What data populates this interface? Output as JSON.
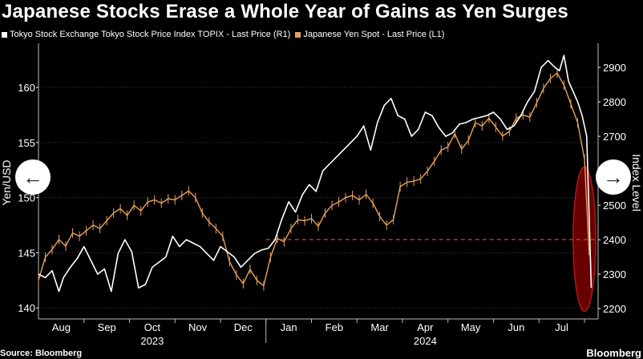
{
  "title": "Japanese Stocks Erase a Whole Year of Gains as Yen Surges",
  "source": "Source: Bloomberg",
  "brand": "Bloomberg",
  "icons": {
    "prev": "arrow-left-icon",
    "next": "arrow-right-icon"
  },
  "nav": {
    "prev_glyph": "←",
    "next_glyph": "→"
  },
  "colors": {
    "background": "#000000",
    "topix": "#ffffff",
    "yen": "#e8a15c",
    "highlight": "#8b0000",
    "reference": "#e03030",
    "grid": "#3a3a3a"
  },
  "chart_data": {
    "type": "line",
    "title": "Japanese Stocks Erase a Whole Year of Gains as Yen Surges",
    "legend": [
      "Tokyo Stock Exchange Tokyo Stock Price Index TOPIX - Last Price (R1)",
      "Japanese Yen Spot - Last Price (L1)"
    ],
    "legend_position": "top-left",
    "ylabel_left": "Yen/USD",
    "ylabel_right": "Index Level",
    "ylim_left": [
      139,
      164
    ],
    "ylim_right": [
      2170,
      2970
    ],
    "yticks_left": [
      140,
      145,
      150,
      155,
      160
    ],
    "yticks_right": [
      2200,
      2300,
      2400,
      2500,
      2600,
      2700,
      2800,
      2900
    ],
    "xlim": [
      0,
      12.3
    ],
    "months": [
      {
        "label": "Aug",
        "x": 0.5
      },
      {
        "label": "Sep",
        "x": 1.5
      },
      {
        "label": "Oct",
        "x": 2.5
      },
      {
        "label": "Nov",
        "x": 3.5
      },
      {
        "label": "Dec",
        "x": 4.5
      },
      {
        "label": "Jan",
        "x": 5.5
      },
      {
        "label": "Feb",
        "x": 6.5
      },
      {
        "label": "Mar",
        "x": 7.5
      },
      {
        "label": "Apr",
        "x": 8.5
      },
      {
        "label": "May",
        "x": 9.5
      },
      {
        "label": "Jun",
        "x": 10.5
      },
      {
        "label": "Jul",
        "x": 11.5
      }
    ],
    "month_boundaries": [
      1,
      2,
      3,
      4,
      5,
      6,
      7,
      8,
      9,
      10,
      11,
      12
    ],
    "years": [
      {
        "label": "2023",
        "x": 2.5
      },
      {
        "label": "2024",
        "x": 8.5
      }
    ],
    "reference_line": {
      "axis": "left",
      "value": 146.2,
      "x_start": 5.0,
      "x_end": 12.3
    },
    "highlight": {
      "x": 12.0,
      "y_left_range": [
        139.7,
        152.8
      ]
    },
    "series": [
      {
        "name": "Tokyo Stock Exchange Tokyo Stock Price Index TOPIX - Last Price (R1)",
        "axis": "right",
        "x": [
          0.0,
          0.15,
          0.3,
          0.45,
          0.55,
          0.7,
          0.85,
          1.0,
          1.15,
          1.3,
          1.45,
          1.6,
          1.75,
          1.9,
          2.05,
          2.2,
          2.35,
          2.5,
          2.65,
          2.8,
          2.95,
          3.1,
          3.25,
          3.4,
          3.55,
          3.7,
          3.85,
          4.0,
          4.15,
          4.3,
          4.45,
          4.6,
          4.75,
          4.9,
          5.05,
          5.2,
          5.35,
          5.5,
          5.65,
          5.8,
          5.95,
          6.1,
          6.25,
          6.4,
          6.55,
          6.7,
          6.85,
          7.0,
          7.15,
          7.3,
          7.45,
          7.6,
          7.75,
          7.9,
          8.05,
          8.2,
          8.35,
          8.5,
          8.65,
          8.8,
          8.95,
          9.1,
          9.25,
          9.4,
          9.55,
          9.7,
          9.85,
          10.0,
          10.15,
          10.3,
          10.45,
          10.6,
          10.75,
          10.9,
          11.05,
          11.2,
          11.35,
          11.45,
          11.55,
          11.65,
          11.75,
          11.85,
          11.95,
          12.05,
          12.15
        ],
        "values": [
          2300,
          2290,
          2310,
          2250,
          2290,
          2320,
          2345,
          2380,
          2340,
          2300,
          2315,
          2250,
          2360,
          2400,
          2365,
          2260,
          2270,
          2320,
          2335,
          2350,
          2410,
          2380,
          2400,
          2390,
          2380,
          2360,
          2340,
          2380,
          2365,
          2350,
          2320,
          2340,
          2360,
          2370,
          2375,
          2400,
          2460,
          2510,
          2480,
          2530,
          2560,
          2540,
          2600,
          2620,
          2640,
          2660,
          2680,
          2700,
          2730,
          2660,
          2740,
          2790,
          2810,
          2760,
          2750,
          2700,
          2720,
          2770,
          2760,
          2725,
          2700,
          2710,
          2735,
          2740,
          2750,
          2755,
          2760,
          2770,
          2750,
          2720,
          2730,
          2760,
          2800,
          2830,
          2900,
          2920,
          2900,
          2890,
          2935,
          2860,
          2830,
          2800,
          2760,
          2700,
          2260
        ]
      },
      {
        "name": "Japanese Yen Spot - Last Price (L1)",
        "axis": "left",
        "x": [
          0.0,
          0.15,
          0.3,
          0.45,
          0.6,
          0.75,
          0.9,
          1.05,
          1.2,
          1.35,
          1.5,
          1.65,
          1.8,
          1.95,
          2.1,
          2.25,
          2.4,
          2.55,
          2.7,
          2.85,
          3.0,
          3.15,
          3.3,
          3.45,
          3.6,
          3.75,
          3.9,
          4.05,
          4.2,
          4.35,
          4.5,
          4.65,
          4.8,
          4.95,
          5.1,
          5.25,
          5.4,
          5.55,
          5.7,
          5.85,
          6.0,
          6.15,
          6.3,
          6.45,
          6.6,
          6.75,
          6.9,
          7.05,
          7.2,
          7.35,
          7.5,
          7.65,
          7.8,
          7.95,
          8.1,
          8.25,
          8.4,
          8.55,
          8.7,
          8.85,
          9.0,
          9.15,
          9.3,
          9.45,
          9.6,
          9.75,
          9.9,
          10.05,
          10.2,
          10.35,
          10.5,
          10.65,
          10.8,
          10.95,
          11.1,
          11.25,
          11.4,
          11.55,
          11.7,
          11.85,
          12.0,
          12.1
        ],
        "values": [
          142.5,
          144.6,
          145.3,
          146.2,
          145.6,
          146.8,
          146.5,
          147.0,
          147.5,
          147.2,
          147.9,
          148.6,
          149.0,
          148.4,
          149.3,
          148.8,
          149.6,
          149.8,
          149.5,
          149.9,
          149.8,
          150.2,
          150.6,
          150.0,
          148.6,
          147.8,
          147.2,
          146.5,
          144.2,
          143.0,
          142.2,
          143.5,
          142.5,
          142.0,
          144.6,
          146.3,
          146.0,
          147.2,
          148.0,
          147.9,
          148.1,
          147.4,
          148.6,
          149.3,
          149.6,
          150.0,
          150.2,
          149.8,
          150.3,
          149.5,
          148.3,
          147.5,
          148.0,
          151.0,
          151.4,
          151.5,
          151.7,
          152.4,
          153.3,
          154.3,
          154.6,
          155.8,
          154.4,
          155.2,
          156.8,
          156.5,
          157.2,
          156.4,
          155.6,
          156.0,
          157.2,
          157.5,
          157.3,
          158.6,
          159.9,
          160.8,
          161.3,
          160.2,
          158.5,
          156.8,
          153.5,
          145.2
        ]
      }
    ]
  }
}
